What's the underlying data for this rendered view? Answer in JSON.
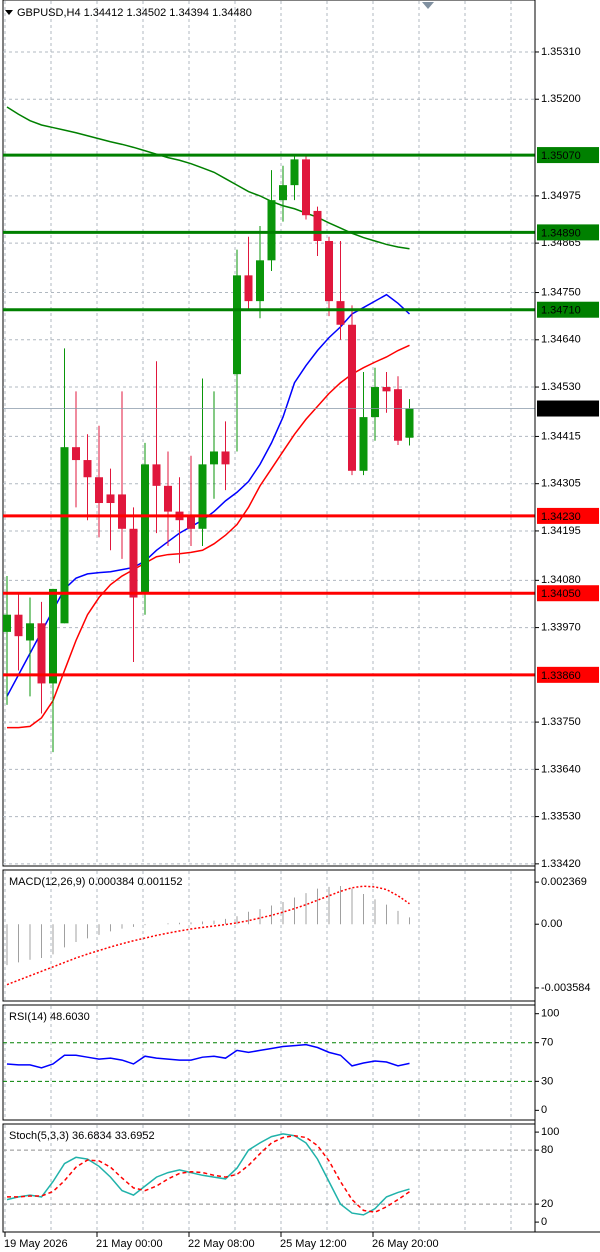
{
  "chart_data": [
    {
      "type": "candlestick",
      "title": "GBPUSD,H4  1.34412 1.34502 1.34394 1.34480",
      "categories": [
        "19 May 2026",
        null,
        null,
        null,
        null,
        null,
        null,
        null,
        "21 May 00:00",
        null,
        null,
        null,
        null,
        null,
        null,
        null,
        "22 May 08:00",
        null,
        null,
        null,
        null,
        null,
        null,
        null,
        "25 May 12:00",
        null,
        null,
        null,
        null,
        null,
        null,
        null,
        "26 May 20:00",
        null,
        null,
        null
      ],
      "open": [
        1.3396,
        1.34,
        1.3394,
        1.3398,
        1.3384,
        1.3398,
        1.3439,
        1.3436,
        1.3432,
        1.3428,
        1.3428,
        1.342,
        1.3405,
        1.3435,
        1.343,
        1.3424,
        1.3423,
        1.342,
        1.3435,
        1.3438,
        1.3456,
        1.3479,
        1.3473,
        1.34825,
        1.34965,
        1.35,
        1.3506,
        1.3494,
        1.3487,
        1.3473,
        1.34675,
        1.34335,
        1.3446,
        1.3453,
        1.34525,
        1.34412
      ],
      "high": [
        1.3409,
        1.3405,
        1.3404,
        1.3403,
        1.3406,
        1.3462,
        1.3452,
        1.3442,
        1.3444,
        1.3434,
        1.3452,
        1.3425,
        1.344,
        1.3459,
        1.3438,
        1.3432,
        1.3437,
        1.3455,
        1.3452,
        1.3445,
        1.3485,
        1.3488,
        1.34905,
        1.35035,
        1.35045,
        1.3507,
        1.3507,
        1.3495,
        1.3488,
        1.3487,
        1.3472,
        1.34565,
        1.34575,
        1.34565,
        1.34555,
        1.34502
      ],
      "low": [
        1.3379,
        1.3387,
        1.3381,
        1.3377,
        1.3368,
        1.3398,
        1.3425,
        1.3422,
        1.3418,
        1.3415,
        1.3413,
        1.3389,
        1.34,
        1.3419,
        1.3416,
        1.3412,
        1.3416,
        1.3416,
        1.3427,
        1.3429,
        1.3438,
        1.3471,
        1.3469,
        1.348,
        1.34915,
        1.34965,
        1.3492,
        1.34835,
        1.34695,
        1.3464,
        1.34325,
        1.34325,
        1.34405,
        1.3447,
        1.34395,
        1.34394
      ],
      "close": [
        1.34,
        1.3395,
        1.3398,
        1.3384,
        1.3406,
        1.3439,
        1.3436,
        1.3432,
        1.3426,
        1.3426,
        1.342,
        1.3404,
        1.3435,
        1.343,
        1.3424,
        1.3422,
        1.342,
        1.3435,
        1.3438,
        1.3435,
        1.3479,
        1.3473,
        1.34825,
        1.34965,
        1.35,
        1.3506,
        1.3493,
        1.3487,
        1.3473,
        1.34675,
        1.34335,
        1.3446,
        1.3453,
        1.3452,
        1.34405,
        1.3448
      ],
      "up_color": "#0a960a",
      "down_color": "#e0173c",
      "series": [
        {
          "color": "#008000",
          "style": "solid",
          "values": [
            1.35182,
            1.35165,
            1.3515,
            1.3514,
            1.35134,
            1.35128,
            1.35122,
            1.35115,
            1.35108,
            1.35101,
            1.35095,
            1.35088,
            1.3508,
            1.35072,
            1.35064,
            1.35058,
            1.3505,
            1.3504,
            1.3503,
            1.35015,
            1.35,
            1.34985,
            1.34975,
            1.34962,
            1.34952,
            1.34945,
            1.34935,
            1.34925,
            1.34912,
            1.349,
            1.34888,
            1.34878,
            1.3487,
            1.34862,
            1.34856,
            1.34852
          ]
        },
        {
          "color": "#0000ff",
          "style": "solid",
          "values": [
            1.3381,
            1.3386,
            1.3391,
            1.3396,
            1.3401,
            1.3406,
            1.34085,
            1.34095,
            1.34098,
            1.341,
            1.34105,
            1.3411,
            1.34125,
            1.3415,
            1.3417,
            1.3419,
            1.34205,
            1.3422,
            1.3424,
            1.34265,
            1.34285,
            1.3431,
            1.3435,
            1.344,
            1.3446,
            1.3454,
            1.3458,
            1.34615,
            1.34645,
            1.3467,
            1.347,
            1.34715,
            1.3473,
            1.34745,
            1.34725,
            1.347
          ]
        },
        {
          "color": "#ff0000",
          "style": "solid",
          "values": [
            1.33737,
            1.33737,
            1.3374,
            1.3376,
            1.338,
            1.3387,
            1.3394,
            1.34,
            1.3404,
            1.3407,
            1.3409,
            1.34105,
            1.3412,
            1.34135,
            1.3414,
            1.34142,
            1.34145,
            1.3415,
            1.34165,
            1.34185,
            1.3421,
            1.3425,
            1.343,
            1.3434,
            1.3438,
            1.3442,
            1.34455,
            1.34485,
            1.34515,
            1.3454,
            1.3456,
            1.34575,
            1.34588,
            1.346,
            1.34615,
            1.34627
          ]
        }
      ],
      "levels": [
        {
          "value": 1.3507,
          "label": "1.35070",
          "color": "#008000"
        },
        {
          "value": 1.3489,
          "label": "1.34890",
          "color": "#008000"
        },
        {
          "value": 1.3471,
          "label": "1.34710",
          "color": "#008000"
        },
        {
          "value": 1.3423,
          "label": "1.34230",
          "color": "#ff0000"
        },
        {
          "value": 1.3405,
          "label": "1.34050",
          "color": "#ff0000"
        },
        {
          "value": 1.3386,
          "label": "1.33860",
          "color": "#ff0000"
        }
      ],
      "last_price": {
        "value": 1.3448,
        "label": "1.34480"
      },
      "ylim": [
        1.33415,
        1.35431
      ],
      "yticks": [
        {
          "value": 1.3531,
          "label": "1.35310"
        },
        {
          "value": 1.352,
          "label": "1.35200"
        },
        1.34975,
        1.34865,
        {
          "value": 1.3475,
          "label": "1.34750"
        },
        {
          "value": 1.3464,
          "label": "1.34640"
        },
        {
          "value": 1.3453,
          "label": "1.34530"
        },
        1.34415,
        1.34305,
        1.34195,
        {
          "value": 1.3408,
          "label": "1.34080"
        },
        {
          "value": 1.3397,
          "label": "1.33970"
        },
        {
          "value": 1.3375,
          "label": "1.33750"
        },
        {
          "value": 1.3364,
          "label": "1.33640"
        },
        {
          "value": 1.3353,
          "label": "1.33530"
        },
        {
          "value": 1.3342,
          "label": "1.33420"
        }
      ],
      "grid": true
    },
    {
      "type": "indicator",
      "title": "MACD(12,26,9) 0.000384 0.001152",
      "series": [
        {
          "color": "#a0a0a0",
          "style": "bar",
          "values": [
            -0.0023,
            -0.00215,
            -0.002,
            -0.0019,
            -0.0017,
            -0.0013,
            -0.001,
            -0.0008,
            -0.0006,
            -0.0004,
            -0.00025,
            -0.00015,
            -5e-05,
            0,
            5e-05,
            8e-05,
            0.0001,
            0.00015,
            0.0002,
            0.0003,
            0.00045,
            0.0007,
            0.00085,
            0.00105,
            0.00125,
            0.0015,
            0.00175,
            0.002,
            0.0021,
            0.00215,
            0.002,
            0.0017,
            0.0014,
            0.0011,
            0.00075,
            0.000384
          ]
        },
        {
          "color": "#ff0000",
          "style": "dotted",
          "values": [
            -0.0034,
            -0.00315,
            -0.0029,
            -0.00265,
            -0.0024,
            -0.00215,
            -0.0019,
            -0.00168,
            -0.00148,
            -0.00128,
            -0.0011,
            -0.00093,
            -0.00078,
            -0.00063,
            -0.0005,
            -0.00038,
            -0.00027,
            -0.00018,
            -0.0001,
            -2e-05,
            8e-05,
            0.0002,
            0.00035,
            0.0005,
            0.00068,
            0.00088,
            0.0011,
            0.00135,
            0.0016,
            0.00185,
            0.00205,
            0.00214,
            0.0021,
            0.00195,
            0.0016,
            0.001152
          ]
        }
      ],
      "ylim": [
        -0.00432,
        0.00305
      ],
      "yticks": [
        0.002369,
        {
          "value": 0,
          "label": "0.00"
        },
        -0.003584
      ]
    },
    {
      "type": "indicator",
      "title": "RSI(14) 48.6030",
      "series": [
        {
          "color": "#0000ff",
          "style": "solid",
          "values": [
            48,
            47,
            47,
            44,
            48,
            57,
            57,
            55,
            53,
            54,
            52,
            48,
            56,
            54,
            53,
            52,
            52,
            55,
            56,
            54,
            62,
            60,
            62,
            64,
            66,
            67,
            68,
            65,
            60,
            57,
            46,
            49,
            51,
            50,
            46,
            48.603
          ]
        }
      ],
      "levels": [
        70,
        30
      ],
      "level_color": "#008000",
      "ylim": [
        -10,
        109
      ],
      "yticks": [
        100,
        70,
        30,
        0
      ]
    },
    {
      "type": "indicator",
      "title": "Stoch(5,3,3) 36.6834 33.6952",
      "series": [
        {
          "color": "#20b2aa",
          "style": "solid",
          "values": [
            25,
            28,
            30,
            28,
            45,
            65,
            72,
            70,
            62,
            50,
            35,
            30,
            40,
            50,
            55,
            58,
            55,
            52,
            50,
            48,
            60,
            80,
            88,
            95,
            98,
            96,
            88,
            70,
            45,
            20,
            10,
            8,
            15,
            28,
            33,
            36.6834
          ]
        },
        {
          "color": "#ff0000",
          "style": "dashed",
          "values": [
            28,
            28,
            29,
            29,
            34,
            46,
            61,
            69,
            68,
            61,
            49,
            38,
            35,
            40,
            48,
            54,
            56,
            55,
            52,
            50,
            53,
            63,
            76,
            88,
            94,
            96,
            94,
            85,
            68,
            45,
            25,
            13,
            11,
            17,
            25,
            33.6952
          ]
        }
      ],
      "levels": [
        80,
        20
      ],
      "level_color": "#909090",
      "ylim": [
        -11,
        109
      ],
      "yticks": [
        100,
        80,
        20,
        0
      ]
    }
  ]
}
